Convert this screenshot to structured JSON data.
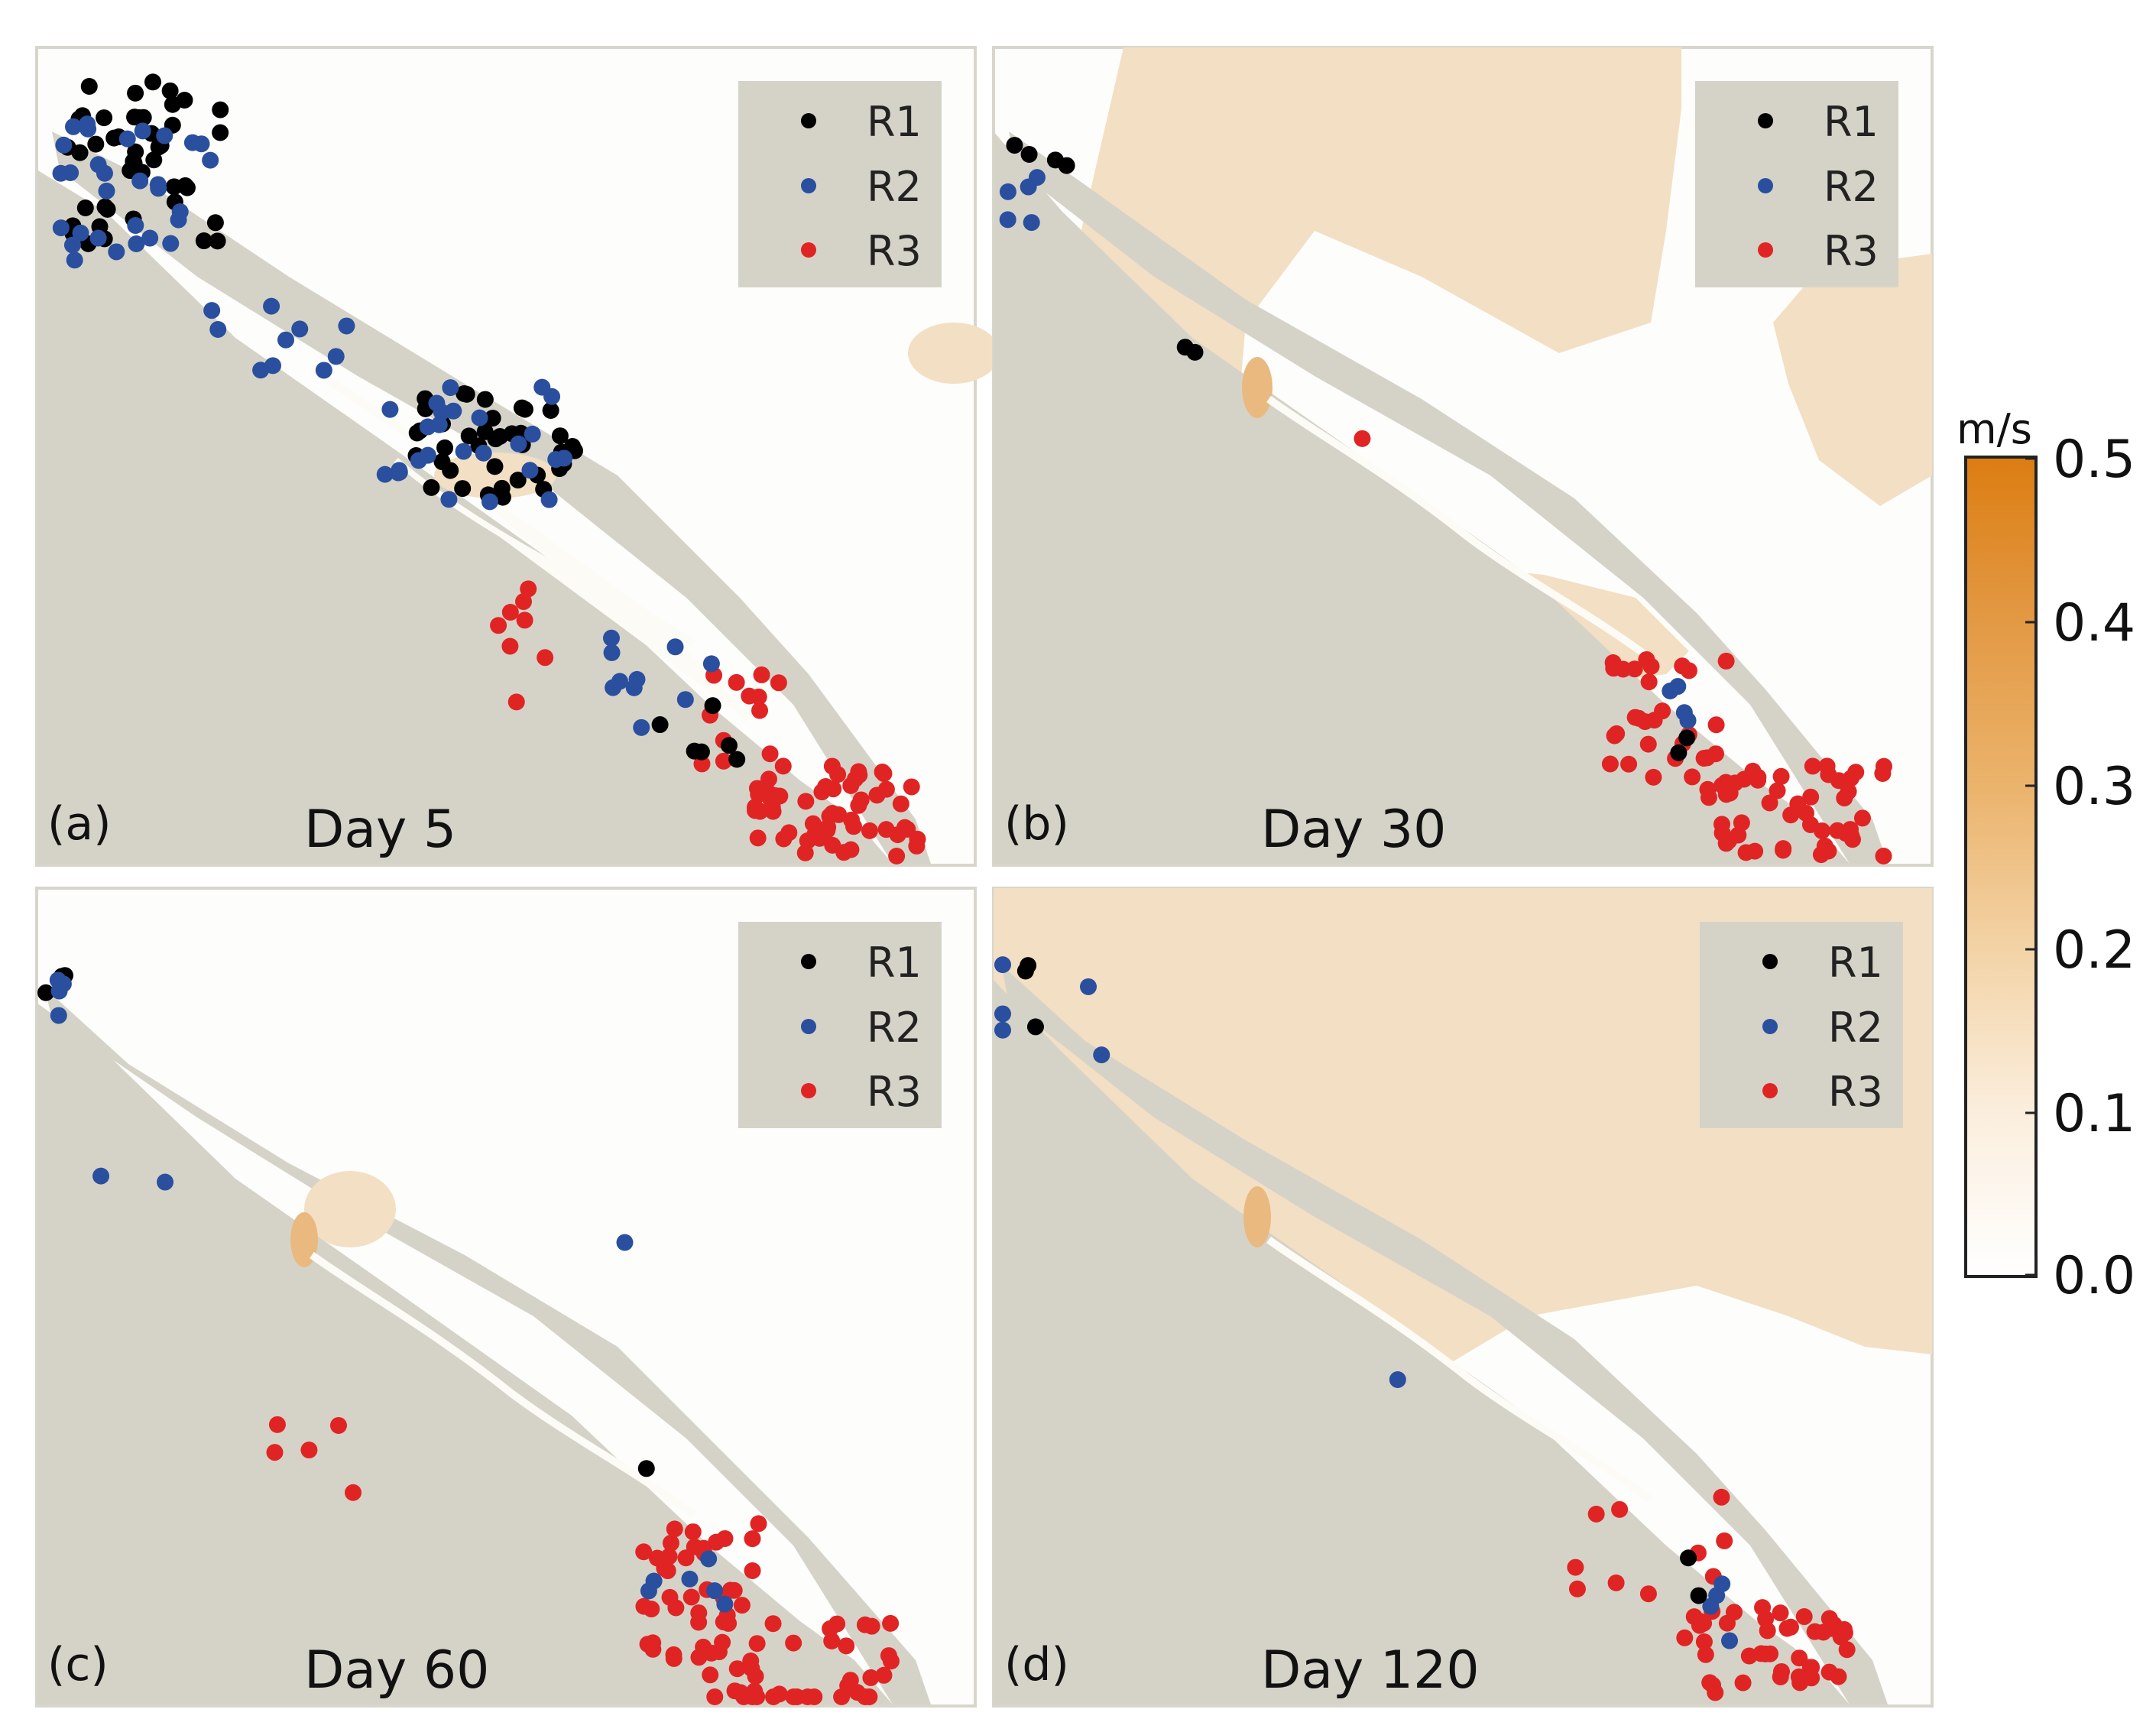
{
  "figure": {
    "colorbar": {
      "unit": "m/s",
      "ticks": [
        "0.5",
        "0.4",
        "0.3",
        "0.2",
        "0.1",
        "0.0"
      ],
      "min": 0.0,
      "max": 0.5,
      "color_low": "#ffffff",
      "color_high": "#dc7d12"
    },
    "legend": {
      "series": [
        {
          "name": "R1",
          "color": "#000000"
        },
        {
          "name": "R2",
          "color": "#2a4f9e"
        },
        {
          "name": "R3",
          "color": "#e02424"
        }
      ]
    },
    "panels": [
      {
        "label": "(a)",
        "title": "Day 5"
      },
      {
        "label": "(b)",
        "title": "Day 30"
      },
      {
        "label": "(c)",
        "title": "Day 60"
      },
      {
        "label": "(d)",
        "title": "Day 120"
      }
    ]
  }
}
